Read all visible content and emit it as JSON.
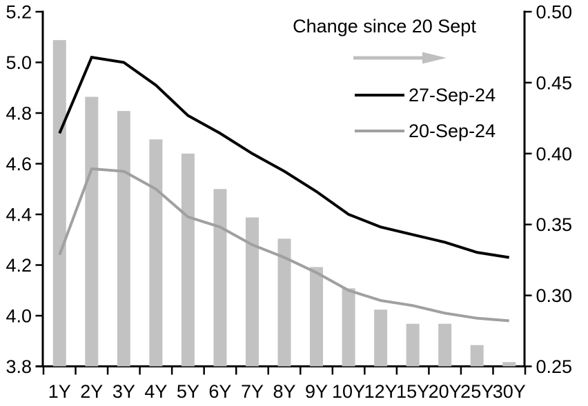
{
  "chart_data": {
    "type": "combo",
    "title": "",
    "categories": [
      "1Y",
      "2Y",
      "3Y",
      "4Y",
      "5Y",
      "6Y",
      "7Y",
      "8Y",
      "9Y",
      "10Y",
      "12Y",
      "15Y",
      "20Y",
      "25Y",
      "30Y"
    ],
    "series": [
      {
        "name": "Change since 20 Sept",
        "type": "bar",
        "axis": "right",
        "color": "#c2c2c2",
        "values": [
          0.48,
          0.44,
          0.43,
          0.41,
          0.4,
          0.375,
          0.355,
          0.34,
          0.32,
          0.305,
          0.29,
          0.28,
          0.28,
          0.265,
          0.253
        ]
      },
      {
        "name": "27-Sep-24",
        "type": "line",
        "axis": "left",
        "color": "#000000",
        "values": [
          4.72,
          5.02,
          5.0,
          4.91,
          4.79,
          4.72,
          4.64,
          4.57,
          4.49,
          4.4,
          4.35,
          4.32,
          4.29,
          4.25,
          4.23
        ]
      },
      {
        "name": "20-Sep-24",
        "type": "line",
        "axis": "left",
        "color": "#a0a0a0",
        "values": [
          4.24,
          4.58,
          4.57,
          4.5,
          4.39,
          4.35,
          4.28,
          4.23,
          4.17,
          4.1,
          4.06,
          4.04,
          4.01,
          3.99,
          3.98
        ]
      }
    ],
    "left_axis": {
      "min": 3.8,
      "max": 5.2,
      "tick_labels": [
        "5.2",
        "5.0",
        "4.8",
        "4.6",
        "4.4",
        "4.2",
        "4.0",
        "3.8"
      ]
    },
    "right_axis": {
      "min": 0.25,
      "max": 0.5,
      "tick_labels": [
        "0.50",
        "0.45",
        "0.40",
        "0.35",
        "0.30",
        "0.25"
      ]
    },
    "grid": false,
    "legend": {
      "position": "top-center-inside",
      "title": "Change since 20 Sept",
      "arrow_icon": "right-arrow",
      "arrow_color": "#bfbfbf",
      "entries": [
        {
          "label": "27-Sep-24",
          "color": "#000000"
        },
        {
          "label": "20-Sep-24",
          "color": "#a0a0a0"
        }
      ]
    }
  }
}
